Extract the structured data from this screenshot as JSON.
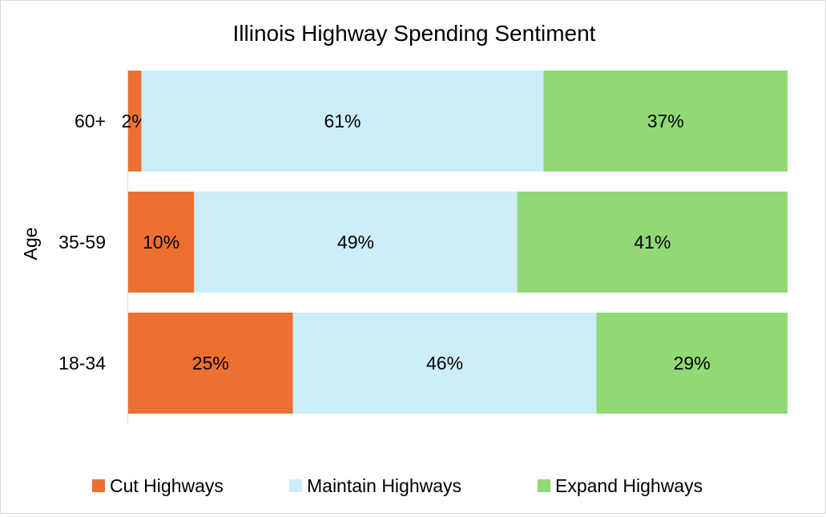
{
  "chart_data": {
    "type": "bar",
    "orientation": "horizontal",
    "stacked": "percent",
    "title": "Illinois Highway Spending Sentiment",
    "ylabel": "Age",
    "xlabel": "",
    "categories": [
      "18-34",
      "35-59",
      "60+"
    ],
    "series": [
      {
        "name": "Cut Highways",
        "color": "#ED7033",
        "values": [
          25,
          10,
          2
        ],
        "labels": [
          "25%",
          "10%",
          "2%"
        ]
      },
      {
        "name": "Maintain Highways",
        "color": "#CCEDFA",
        "values": [
          46,
          49,
          61
        ],
        "labels": [
          "46%",
          "49%",
          "61%"
        ]
      },
      {
        "name": "Expand Highways",
        "color": "#90D974",
        "values": [
          29,
          41,
          37
        ],
        "labels": [
          "29%",
          "41%",
          "37%"
        ]
      }
    ],
    "xlim": [
      0,
      100
    ],
    "grid": false,
    "legend": "bottom"
  }
}
